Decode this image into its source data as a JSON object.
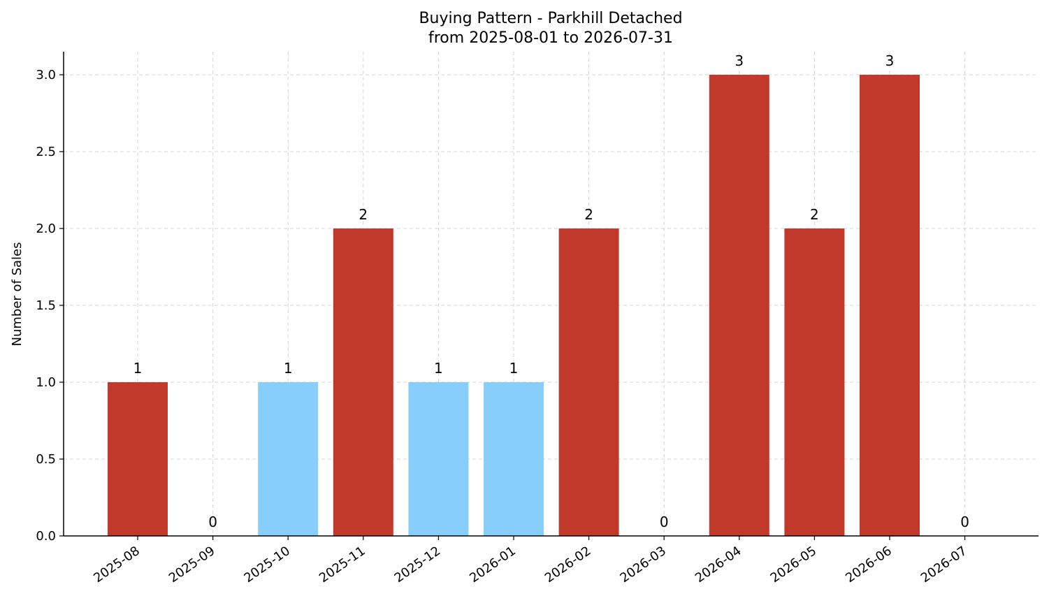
{
  "chart_data": {
    "type": "bar",
    "title": [
      "Buying Pattern - Parkhill Detached",
      "from 2025-08-01 to 2026-07-31"
    ],
    "xlabel": "",
    "ylabel": "Number of Sales",
    "ylim": [
      0,
      3.15
    ],
    "yticks": [
      "0.0",
      "0.5",
      "1.0",
      "1.5",
      "2.0",
      "2.5",
      "3.0"
    ],
    "grid": true,
    "categories": [
      "2025-08",
      "2025-09",
      "2025-10",
      "2025-11",
      "2025-12",
      "2026-01",
      "2026-02",
      "2026-03",
      "2026-04",
      "2026-05",
      "2026-06",
      "2026-07"
    ],
    "values": [
      1,
      0,
      1,
      2,
      1,
      1,
      2,
      0,
      3,
      2,
      3,
      0
    ],
    "value_labels": [
      "1",
      "0",
      "1",
      "2",
      "1",
      "1",
      "2",
      "0",
      "3",
      "2",
      "3",
      "0"
    ],
    "bar_colors": [
      "#c0392b",
      "#c0392b",
      "#87cefa",
      "#c0392b",
      "#87cefa",
      "#87cefa",
      "#c0392b",
      "#c0392b",
      "#c0392b",
      "#c0392b",
      "#c0392b",
      "#c0392b"
    ]
  }
}
